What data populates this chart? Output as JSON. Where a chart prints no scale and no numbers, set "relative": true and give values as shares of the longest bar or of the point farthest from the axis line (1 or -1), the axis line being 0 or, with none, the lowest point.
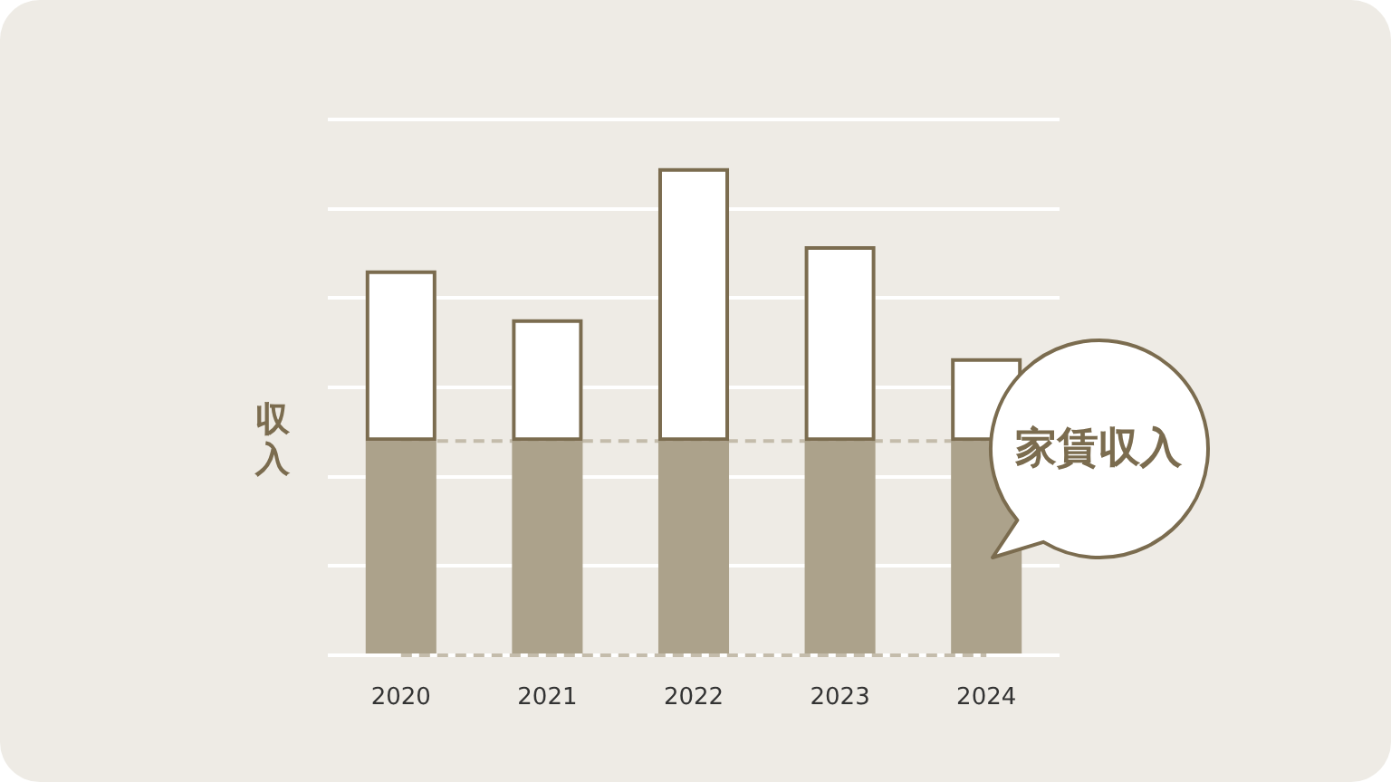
{
  "chart_data": {
    "type": "bar",
    "ylabel": "収入",
    "categories": [
      "2020",
      "2021",
      "2022",
      "2023",
      "2024"
    ],
    "stacked": true,
    "relative": true,
    "grid": "y",
    "series": [
      {
        "name": "家賃収入",
        "color": "#aca28b",
        "values": [
          0.44,
          0.44,
          0.44,
          0.44,
          0.44
        ]
      },
      {
        "color": "#ffffff",
        "values": [
          0.35,
          0.25,
          0.56,
          0.4,
          0.17
        ]
      }
    ],
    "ref_lines": [
      {
        "axis": "y",
        "value": 0.44,
        "color": "#c4bcab",
        "line_style": "dashed"
      },
      {
        "axis": "y",
        "value": 0,
        "color": "#c4bcab",
        "line_style": "dashed"
      }
    ]
  }
}
